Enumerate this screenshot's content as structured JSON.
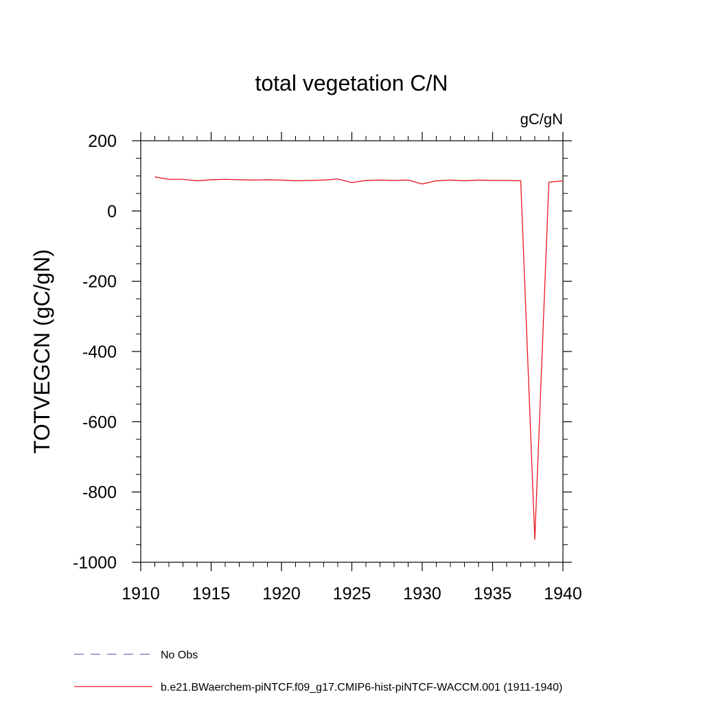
{
  "chart_data": {
    "type": "line",
    "title": "total vegetation C/N",
    "units_label": "gC/gN",
    "ylabel": "TOTVEGCN  (gC/gN)",
    "xlabel": "",
    "xlim": [
      1910,
      1940
    ],
    "ylim": [
      -1000,
      200
    ],
    "x_ticks": [
      1910,
      1915,
      1920,
      1925,
      1930,
      1935,
      1940
    ],
    "y_ticks": [
      200,
      0,
      -200,
      -400,
      -600,
      -800,
      -1000
    ],
    "x_minor_step": 1,
    "y_minor_step": 50,
    "grid": false,
    "legend_position": "bottom-left",
    "series": [
      {
        "name": "No Obs",
        "color": "#7b68b0",
        "dash": "dashed",
        "x": [],
        "y": []
      },
      {
        "name": "b.e21.BWaerchem-piNTCF.f09_g17.CMIP6-hist-piNTCF-WACCM.001 (1911-1940)",
        "color": "#e8141e",
        "dash": "solid",
        "x": [
          1911,
          1912,
          1913,
          1914,
          1915,
          1916,
          1917,
          1918,
          1919,
          1920,
          1921,
          1922,
          1923,
          1924,
          1925,
          1926,
          1927,
          1928,
          1929,
          1930,
          1931,
          1932,
          1933,
          1934,
          1935,
          1936,
          1937,
          1938,
          1939,
          1940
        ],
        "y": [
          97,
          90,
          90,
          86,
          89,
          90,
          89,
          88,
          89,
          88,
          86,
          87,
          88,
          91,
          81,
          87,
          88,
          87,
          88,
          77,
          86,
          88,
          86,
          88,
          87,
          87,
          86,
          -935,
          82,
          86
        ]
      }
    ]
  }
}
